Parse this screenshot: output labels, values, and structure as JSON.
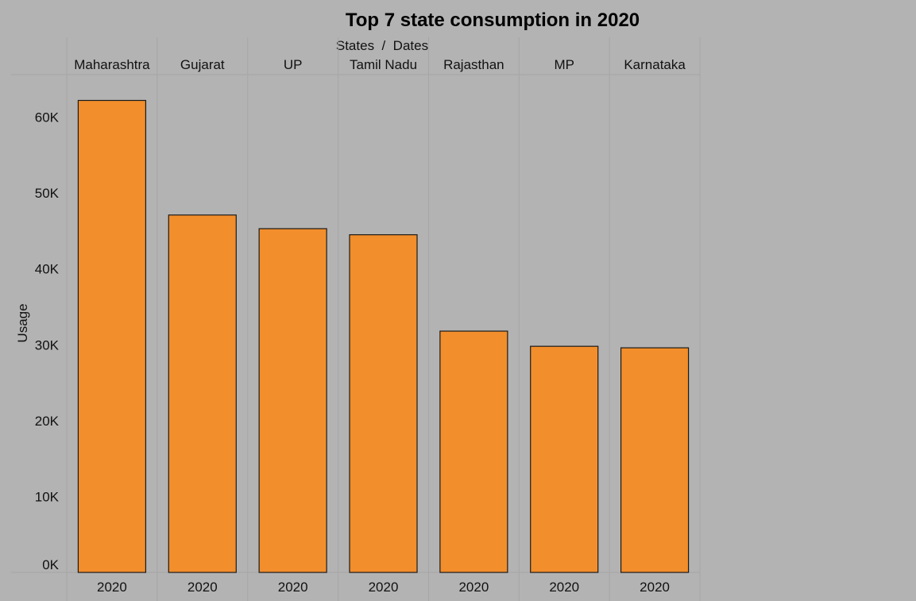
{
  "chart_data": {
    "type": "bar",
    "title": "Top 7 state consumption in 2020",
    "header_label": "States  /  Dates",
    "ylabel": "Usage",
    "categories": [
      "Maharashtra",
      "Gujarat",
      "UP",
      "Tamil Nadu",
      "Rajasthan",
      "MP",
      "Karnataka"
    ],
    "x_sublabel": "2020",
    "values": [
      62200,
      47100,
      45300,
      44500,
      31800,
      29800,
      29600
    ],
    "ylim": [
      0,
      65600
    ],
    "yticks": [
      0,
      10000,
      20000,
      30000,
      40000,
      50000,
      60000
    ],
    "ytick_labels": [
      "0K",
      "10K",
      "20K",
      "30K",
      "40K",
      "50K",
      "60K"
    ],
    "grid": false,
    "legend": "none",
    "colors": {
      "bar": "#f28e2b",
      "bar_edge": "#1a1a1a",
      "background": "#b3b3b3"
    }
  }
}
